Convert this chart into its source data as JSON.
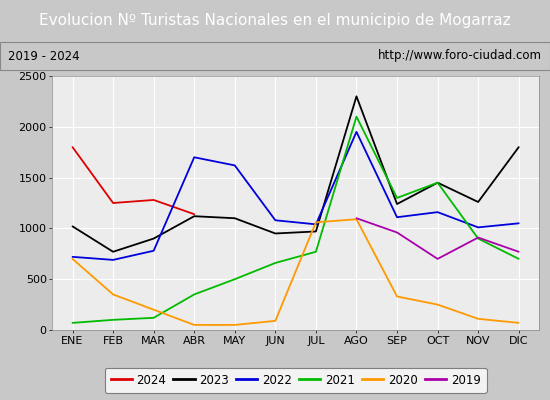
{
  "title": "Evolucion Nº Turistas Nacionales en el municipio de Mogarraz",
  "subtitle_left": "2019 - 2024",
  "subtitle_right": "http://www.foro-ciudad.com",
  "months": [
    "ENE",
    "FEB",
    "MAR",
    "ABR",
    "MAY",
    "JUN",
    "JUL",
    "AGO",
    "SEP",
    "OCT",
    "NOV",
    "DIC"
  ],
  "ylim": [
    0,
    2500
  ],
  "yticks": [
    0,
    500,
    1000,
    1500,
    2000,
    2500
  ],
  "series": {
    "2024": {
      "color": "#dd0000",
      "values": [
        1800,
        1250,
        1280,
        1140,
        null,
        null,
        null,
        null,
        null,
        null,
        null,
        null
      ]
    },
    "2023": {
      "color": "#000000",
      "values": [
        1020,
        770,
        900,
        1120,
        1100,
        950,
        970,
        2300,
        1240,
        1450,
        1260,
        1800
      ]
    },
    "2022": {
      "color": "#0000dd",
      "values": [
        720,
        690,
        780,
        1700,
        1620,
        1080,
        1040,
        1950,
        1110,
        1160,
        1010,
        1050
      ]
    },
    "2021": {
      "color": "#00bb00",
      "values": [
        70,
        100,
        120,
        350,
        500,
        660,
        770,
        2100,
        1300,
        1450,
        900,
        700
      ]
    },
    "2020": {
      "color": "#ff9900",
      "values": [
        700,
        350,
        200,
        50,
        50,
        90,
        1060,
        1090,
        330,
        250,
        110,
        70
      ]
    },
    "2019": {
      "color": "#aa00aa",
      "values": [
        null,
        null,
        null,
        null,
        null,
        null,
        null,
        1100,
        960,
        700,
        910,
        770
      ]
    }
  },
  "title_bg_color": "#4472c4",
  "title_text_color": "#ffffff",
  "subtitle_bg_color": "#e8e8e8",
  "plot_bg_color": "#ececec",
  "grid_color": "#ffffff",
  "outer_bg_color": "#c8c8c8",
  "title_fontsize": 11,
  "subtitle_fontsize": 8.5,
  "axis_fontsize": 8,
  "legend_fontsize": 8.5
}
